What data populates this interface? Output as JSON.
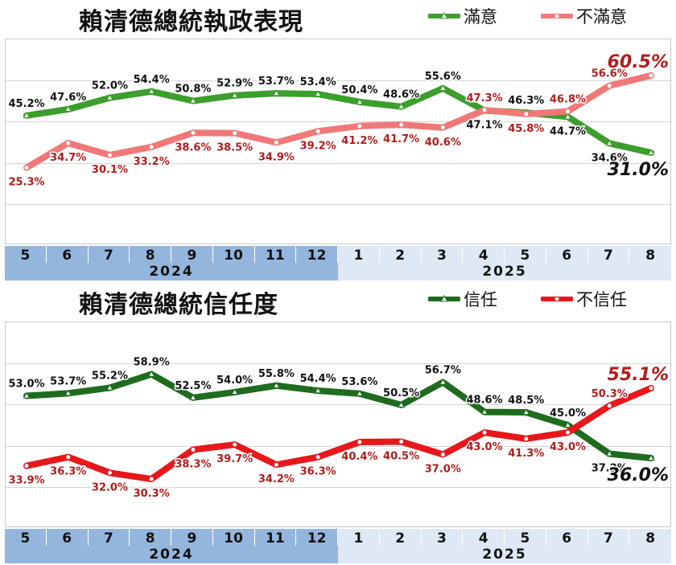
{
  "chart_data": [
    {
      "type": "line",
      "title": "賴清德總統執政表現",
      "categories": [
        "5",
        "6",
        "7",
        "8",
        "9",
        "10",
        "11",
        "12",
        "1",
        "2",
        "3",
        "4",
        "5",
        "6",
        "7",
        "8"
      ],
      "years": [
        {
          "label": "2024",
          "span": 8,
          "color": "#94b6dd"
        },
        {
          "label": "2025",
          "span": 8,
          "color": "#dfe9f5"
        }
      ],
      "ylim": [
        0,
        70
      ],
      "grid": true,
      "legend_position": "top-right",
      "series": [
        {
          "name": "滿意",
          "color": "#3c9e2c",
          "marker": "triangle",
          "text_color": "#111111",
          "values": [
            45.2,
            47.6,
            52.0,
            54.4,
            50.8,
            52.9,
            53.7,
            53.4,
            50.4,
            48.6,
            55.6,
            47.1,
            46.3,
            44.7,
            34.6,
            31.0
          ],
          "labels": [
            "45.2%",
            "47.6%",
            "52.0%",
            "54.4%",
            "50.8%",
            "52.9%",
            "53.7%",
            "53.4%",
            "50.4%",
            "48.6%",
            "55.6%",
            "47.1%",
            "46.3%",
            "44.7%",
            "34.6%",
            "31.0%"
          ]
        },
        {
          "name": "不滿意",
          "color": "#f07878",
          "marker": "circle",
          "text_color": "#b01c1c",
          "values": [
            25.3,
            34.7,
            30.1,
            33.2,
            38.6,
            38.5,
            34.9,
            39.2,
            41.2,
            41.7,
            40.6,
            47.3,
            45.8,
            46.8,
            56.6,
            60.5
          ],
          "labels": [
            "25.3%",
            "34.7%",
            "30.1%",
            "33.2%",
            "38.6%",
            "38.5%",
            "34.9%",
            "39.2%",
            "41.2%",
            "41.7%",
            "40.6%",
            "47.3%",
            "45.8%",
            "46.8%",
            "56.6%",
            "60.5%"
          ]
        }
      ]
    },
    {
      "type": "line",
      "title": "賴清德總統信任度",
      "categories": [
        "5",
        "6",
        "7",
        "8",
        "9",
        "10",
        "11",
        "12",
        "1",
        "2",
        "3",
        "4",
        "5",
        "6",
        "7",
        "8"
      ],
      "years": [
        {
          "label": "2024",
          "span": 8,
          "color": "#94b6dd"
        },
        {
          "label": "2025",
          "span": 8,
          "color": "#dfe9f5"
        }
      ],
      "ylim": [
        20,
        70
      ],
      "grid": true,
      "legend_position": "top-right",
      "series": [
        {
          "name": "信任",
          "color": "#1f6b1f",
          "marker": "triangle",
          "text_color": "#111111",
          "values": [
            53.0,
            53.7,
            55.2,
            58.9,
            52.5,
            54.0,
            55.8,
            54.4,
            53.6,
            50.5,
            56.7,
            48.6,
            48.5,
            45.0,
            37.2,
            36.0
          ],
          "labels": [
            "53.0%",
            "53.7%",
            "55.2%",
            "58.9%",
            "52.5%",
            "54.0%",
            "55.8%",
            "54.4%",
            "53.6%",
            "50.5%",
            "56.7%",
            "48.6%",
            "48.5%",
            "45.0%",
            "37.2%",
            "36.0%"
          ]
        },
        {
          "name": "不信任",
          "color": "#e8171b",
          "marker": "circle",
          "text_color": "#b01c1c",
          "values": [
            33.9,
            36.3,
            32.0,
            30.3,
            38.3,
            39.7,
            34.2,
            36.3,
            40.4,
            40.5,
            37.0,
            43.0,
            41.3,
            43.0,
            50.3,
            55.1
          ],
          "labels": [
            "33.9%",
            "36.3%",
            "32.0%",
            "30.3%",
            "38.3%",
            "39.7%",
            "34.2%",
            "36.3%",
            "40.4%",
            "40.5%",
            "37.0%",
            "43.0%",
            "41.3%",
            "43.0%",
            "50.3%",
            "55.1%"
          ]
        }
      ]
    }
  ]
}
